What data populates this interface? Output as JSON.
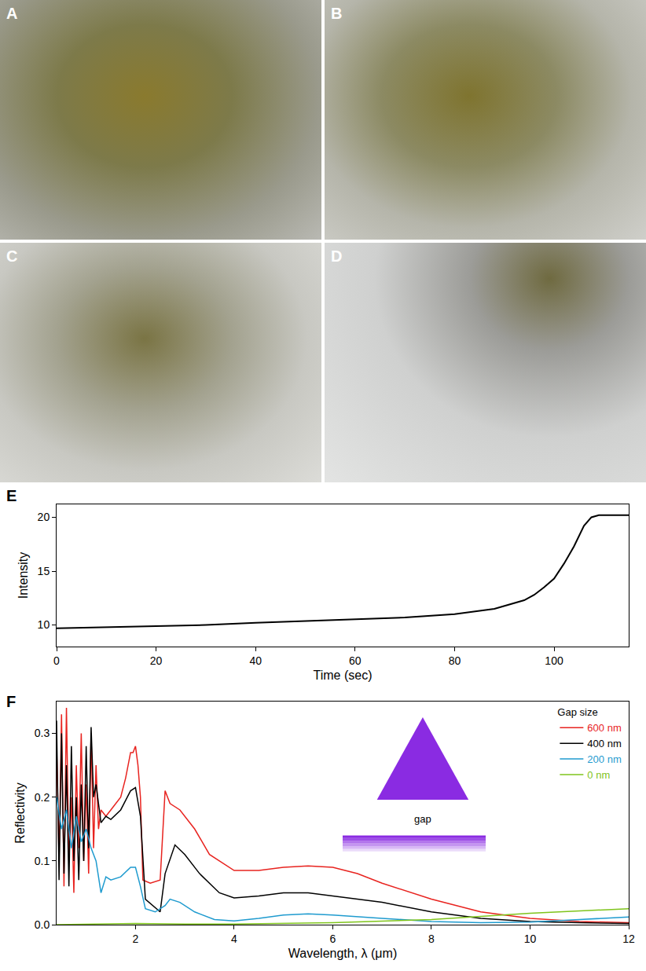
{
  "images": [
    {
      "label": "A"
    },
    {
      "label": "B"
    },
    {
      "label": "C"
    },
    {
      "label": "D"
    }
  ],
  "chart_data": [
    {
      "type": "line",
      "label": "E",
      "x_label": "Time (sec)",
      "y_label": "Intensity",
      "x": [
        0,
        10,
        20,
        30,
        40,
        50,
        60,
        70,
        80,
        85,
        88,
        91,
        94,
        96,
        98,
        100,
        102,
        104,
        106,
        107.5,
        109,
        112,
        115
      ],
      "values": [
        9.7,
        9.8,
        9.9,
        10.0,
        10.2,
        10.35,
        10.55,
        10.7,
        11.0,
        11.3,
        11.5,
        11.9,
        12.3,
        12.8,
        13.5,
        14.3,
        15.7,
        17.3,
        19.2,
        20.0,
        20.2,
        20.2,
        20.2
      ],
      "color": "#000000",
      "xlim": [
        0,
        115
      ],
      "ylim": [
        8,
        21.2
      ],
      "xticks": [
        0,
        20,
        40,
        60,
        80,
        100
      ],
      "yticks": [
        10,
        15,
        20
      ],
      "grid": false
    },
    {
      "type": "line",
      "label": "F",
      "x_label": "Wavelength, λ (μm)",
      "y_label": "Reflectivity",
      "legend_title": "Gap size",
      "legend": "top right",
      "annotations": [
        "gap"
      ],
      "xlim": [
        0.4,
        12
      ],
      "ylim": [
        0,
        0.35
      ],
      "xticks": [
        2,
        4,
        6,
        8,
        10,
        12
      ],
      "yticks": [
        {
          "value": 0,
          "label": "0.0"
        },
        {
          "value": 0.1,
          "label": "0.1"
        },
        {
          "value": 0.2,
          "label": "0.2"
        },
        {
          "value": 0.3,
          "label": "0.3"
        }
      ],
      "grid": false,
      "series": [
        {
          "name": "600 nm",
          "color": "#e8231f",
          "x": [
            0.4,
            0.45,
            0.5,
            0.55,
            0.6,
            0.65,
            0.7,
            0.75,
            0.8,
            0.85,
            0.9,
            0.95,
            1.0,
            1.05,
            1.1,
            1.15,
            1.2,
            1.25,
            1.3,
            1.4,
            1.5,
            1.6,
            1.7,
            1.8,
            1.9,
            1.95,
            2.0,
            2.05,
            2.1,
            2.15,
            2.3,
            2.5,
            2.6,
            2.7,
            2.9,
            3.2,
            3.5,
            4,
            4.5,
            5,
            5.5,
            6,
            6.5,
            7,
            8,
            9,
            10,
            11,
            12
          ],
          "values": [
            0.28,
            0.1,
            0.33,
            0.06,
            0.34,
            0.1,
            0.2,
            0.05,
            0.25,
            0.12,
            0.3,
            0.1,
            0.22,
            0.08,
            0.3,
            0.12,
            0.25,
            0.15,
            0.18,
            0.17,
            0.18,
            0.19,
            0.2,
            0.23,
            0.27,
            0.27,
            0.28,
            0.25,
            0.2,
            0.07,
            0.065,
            0.07,
            0.21,
            0.19,
            0.18,
            0.15,
            0.11,
            0.085,
            0.085,
            0.09,
            0.092,
            0.09,
            0.08,
            0.065,
            0.04,
            0.02,
            0.01,
            0.005,
            0.003
          ]
        },
        {
          "name": "400 nm",
          "color": "#000000",
          "x": [
            0.4,
            0.45,
            0.5,
            0.55,
            0.6,
            0.65,
            0.7,
            0.75,
            0.8,
            0.85,
            0.9,
            0.95,
            1.0,
            1.05,
            1.1,
            1.15,
            1.2,
            1.3,
            1.4,
            1.5,
            1.7,
            1.9,
            2.0,
            2.1,
            2.2,
            2.35,
            2.5,
            2.6,
            2.8,
            3.0,
            3.3,
            3.7,
            4,
            4.5,
            5,
            5.5,
            6,
            7,
            8,
            9,
            10,
            11,
            12
          ],
          "values": [
            0.32,
            0.07,
            0.3,
            0.08,
            0.25,
            0.06,
            0.28,
            0.1,
            0.2,
            0.07,
            0.22,
            0.1,
            0.28,
            0.12,
            0.31,
            0.2,
            0.22,
            0.16,
            0.17,
            0.165,
            0.18,
            0.21,
            0.215,
            0.17,
            0.04,
            0.03,
            0.02,
            0.08,
            0.125,
            0.11,
            0.08,
            0.05,
            0.042,
            0.045,
            0.05,
            0.05,
            0.045,
            0.035,
            0.02,
            0.01,
            0.005,
            0.003,
            0.002
          ]
        },
        {
          "name": "200 nm",
          "color": "#1f9bcf",
          "x": [
            0.4,
            0.5,
            0.6,
            0.7,
            0.8,
            0.9,
            1.0,
            1.1,
            1.2,
            1.3,
            1.4,
            1.5,
            1.7,
            1.9,
            2.0,
            2.1,
            2.2,
            2.4,
            2.6,
            2.7,
            2.9,
            3.2,
            3.6,
            4,
            4.5,
            5,
            5.5,
            6,
            7,
            8,
            9,
            10,
            11,
            12
          ],
          "values": [
            0.2,
            0.15,
            0.18,
            0.12,
            0.17,
            0.13,
            0.15,
            0.12,
            0.1,
            0.05,
            0.075,
            0.07,
            0.075,
            0.09,
            0.09,
            0.06,
            0.025,
            0.02,
            0.03,
            0.04,
            0.035,
            0.02,
            0.008,
            0.006,
            0.01,
            0.015,
            0.017,
            0.015,
            0.01,
            0.005,
            0.003,
            0.004,
            0.008,
            0.012
          ]
        },
        {
          "name": "0 nm",
          "color": "#7fc41c",
          "x": [
            0.4,
            1,
            2,
            3,
            4,
            6,
            8,
            10,
            12
          ],
          "values": [
            0.0,
            0.001,
            0.002,
            0.001,
            0.001,
            0.003,
            0.008,
            0.018,
            0.025
          ]
        }
      ]
    }
  ]
}
